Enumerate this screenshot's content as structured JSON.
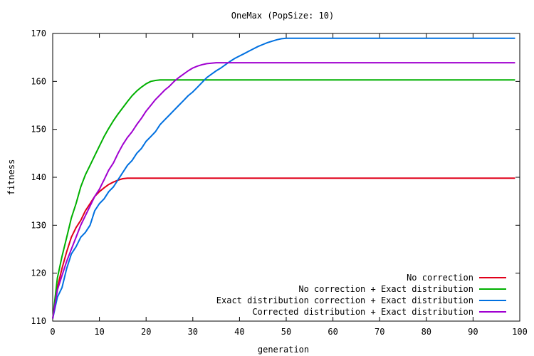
{
  "chart_data": {
    "type": "line",
    "title": "OneMax (PopSize: 10)",
    "xlabel": "generation",
    "ylabel": "fitness",
    "xlim": [
      0,
      100
    ],
    "ylim": [
      110,
      170
    ],
    "xticks": [
      0,
      10,
      20,
      30,
      40,
      50,
      60,
      70,
      80,
      90,
      100
    ],
    "yticks": [
      110,
      120,
      130,
      140,
      150,
      160,
      170
    ],
    "grid": false,
    "legend_position": "bottom-right",
    "x": [
      0,
      1,
      2,
      3,
      4,
      5,
      6,
      7,
      8,
      9,
      10,
      11,
      12,
      13,
      14,
      15,
      16,
      17,
      18,
      19,
      20,
      21,
      22,
      23,
      24,
      25,
      26,
      27,
      28,
      29,
      30,
      31,
      32,
      33,
      34,
      35,
      36,
      37,
      38,
      39,
      40,
      41,
      42,
      43,
      44,
      45,
      46,
      47,
      48,
      49,
      50,
      51,
      52,
      53,
      54,
      55,
      60,
      70,
      80,
      90,
      99
    ],
    "series": [
      {
        "name": "No correction",
        "color": "#e0001a",
        "values": [
          110.5,
          117,
          121,
          124.5,
          127.5,
          129.5,
          131,
          133,
          134.5,
          136,
          137,
          137.8,
          138.5,
          139,
          139.4,
          139.7,
          139.8,
          139.8,
          139.8,
          139.8,
          139.8,
          139.8,
          139.8,
          139.8,
          139.8,
          139.8,
          139.8,
          139.8,
          139.8,
          139.8,
          139.8,
          139.8,
          139.8,
          139.8,
          139.8,
          139.8,
          139.8,
          139.8,
          139.8,
          139.8,
          139.8,
          139.8,
          139.8,
          139.8,
          139.8,
          139.8,
          139.8,
          139.8,
          139.8,
          139.8,
          139.8,
          139.8,
          139.8,
          139.8,
          139.8,
          139.8,
          139.8,
          139.8,
          139.8,
          139.8,
          139.8
        ]
      },
      {
        "name": "No correction + Exact distribution",
        "color": "#00b000",
        "values": [
          110.5,
          119,
          123.5,
          127.5,
          131.5,
          134.5,
          138,
          140.5,
          142.5,
          144.5,
          146.5,
          148.5,
          150.2,
          151.8,
          153.2,
          154.5,
          155.8,
          157,
          158,
          158.8,
          159.5,
          160,
          160.2,
          160.3,
          160.3,
          160.3,
          160.3,
          160.3,
          160.3,
          160.3,
          160.3,
          160.3,
          160.3,
          160.3,
          160.3,
          160.3,
          160.3,
          160.3,
          160.3,
          160.3,
          160.3,
          160.3,
          160.3,
          160.3,
          160.3,
          160.3,
          160.3,
          160.3,
          160.3,
          160.3,
          160.3,
          160.3,
          160.3,
          160.3,
          160.3,
          160.3,
          160.3,
          160.3,
          160.3,
          160.3,
          160.3
        ]
      },
      {
        "name": "Exact distribution correction + Exact distribution",
        "color": "#0070e0",
        "values": [
          110.5,
          115,
          117,
          121,
          124,
          125.5,
          127.5,
          128.5,
          130,
          133,
          134.5,
          135.5,
          137,
          138,
          139.5,
          141,
          142.5,
          143.5,
          145,
          146,
          147.5,
          148.5,
          149.5,
          151,
          152,
          153,
          154,
          155,
          156,
          157,
          157.8,
          158.8,
          159.8,
          160.8,
          161.5,
          162.2,
          162.8,
          163.5,
          164.2,
          164.8,
          165.3,
          165.8,
          166.3,
          166.8,
          167.3,
          167.7,
          168.1,
          168.4,
          168.7,
          168.9,
          169,
          169,
          169,
          169,
          169,
          169,
          169,
          169,
          169,
          169,
          169
        ]
      },
      {
        "name": "Corrected distribution + Exact distribution",
        "color": "#a000d0",
        "values": [
          110.5,
          116.5,
          119.5,
          122.5,
          125,
          127.5,
          130,
          132,
          134,
          136,
          137.5,
          139.5,
          141.5,
          143,
          145,
          146.8,
          148.3,
          149.5,
          151,
          152.3,
          153.8,
          155,
          156.2,
          157.2,
          158.2,
          159,
          160,
          160.8,
          161.5,
          162.2,
          162.8,
          163.2,
          163.5,
          163.7,
          163.8,
          163.9,
          163.9,
          163.9,
          163.9,
          163.9,
          163.9,
          163.9,
          163.9,
          163.9,
          163.9,
          163.9,
          163.9,
          163.9,
          163.9,
          163.9,
          163.9,
          163.9,
          163.9,
          163.9,
          163.9,
          163.9,
          163.9,
          163.9,
          163.9,
          163.9,
          163.9
        ]
      }
    ]
  }
}
